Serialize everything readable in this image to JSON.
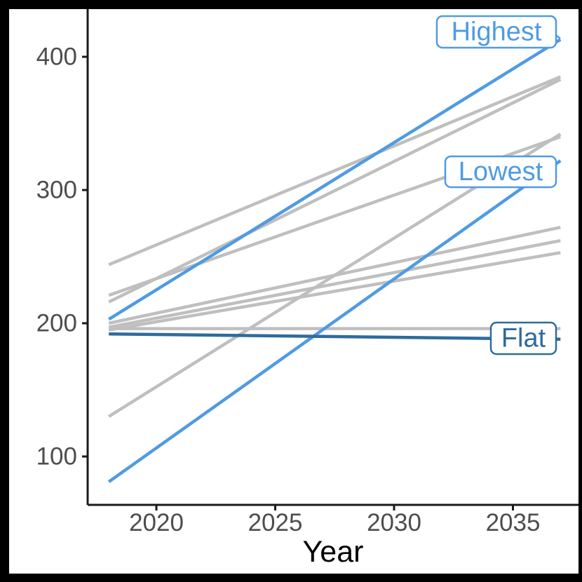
{
  "window": {
    "background": "#FFFFFF",
    "frame_color": "#000000"
  },
  "colors": {
    "highlight_blue": "#4F9BE3",
    "flat_blue": "#2E6B9E",
    "gray_line": "#BFBFBF",
    "axis_text": "#4D4D4D",
    "xlabel_text": "#000000",
    "axis_line": "#1A1A1A",
    "label_box_fill": "#FFFFFF"
  },
  "chart_data": {
    "type": "line",
    "title": "",
    "xlabel": "Year",
    "ylabel": "",
    "x_ticks": [
      2020,
      2025,
      2030,
      2035
    ],
    "y_ticks": [
      100,
      200,
      300,
      400
    ],
    "xlim": [
      2017.1,
      2037.8
    ],
    "ylim": [
      63,
      436
    ],
    "series_x_span": [
      2018,
      2037
    ],
    "grid": false,
    "legend": "none - direct labels on lines",
    "series": [
      {
        "name": "Highest",
        "label": "Highest",
        "labeled": true,
        "color": "#4F9BE3",
        "x": [
          2018,
          2037
        ],
        "values": [
          203,
          413
        ]
      },
      {
        "name": "Lowest",
        "label": "Lowest",
        "labeled": true,
        "color": "#4F9BE3",
        "x": [
          2018,
          2037
        ],
        "values": [
          81,
          322
        ]
      },
      {
        "name": "Flat",
        "label": "Flat",
        "labeled": true,
        "color": "#2E6B9E",
        "x": [
          2018,
          2037
        ],
        "values": [
          192,
          188
        ]
      },
      {
        "name": "gray-1",
        "label": "",
        "labeled": false,
        "color": "#BFBFBF",
        "x": [
          2018,
          2037
        ],
        "values": [
          244,
          385
        ]
      },
      {
        "name": "gray-2",
        "label": "",
        "labeled": false,
        "color": "#BFBFBF",
        "x": [
          2018,
          2037
        ],
        "values": [
          216,
          383
        ]
      },
      {
        "name": "gray-3",
        "label": "",
        "labeled": false,
        "color": "#BFBFBF",
        "x": [
          2018,
          2037
        ],
        "values": [
          221,
          340
        ]
      },
      {
        "name": "gray-4",
        "label": "",
        "labeled": false,
        "color": "#BFBFBF",
        "x": [
          2018,
          2037
        ],
        "values": [
          130,
          342
        ]
      },
      {
        "name": "gray-5",
        "label": "",
        "labeled": false,
        "color": "#BFBFBF",
        "x": [
          2018,
          2037
        ],
        "values": [
          200,
          272
        ]
      },
      {
        "name": "gray-6",
        "label": "",
        "labeled": false,
        "color": "#BFBFBF",
        "x": [
          2018,
          2037
        ],
        "values": [
          197,
          262
        ]
      },
      {
        "name": "gray-7",
        "label": "",
        "labeled": false,
        "color": "#BFBFBF",
        "x": [
          2018,
          2037
        ],
        "values": [
          195,
          253
        ]
      },
      {
        "name": "gray-8",
        "label": "",
        "labeled": false,
        "color": "#BFBFBF",
        "x": [
          2018,
          2037
        ],
        "values": [
          196,
          196
        ]
      }
    ]
  }
}
